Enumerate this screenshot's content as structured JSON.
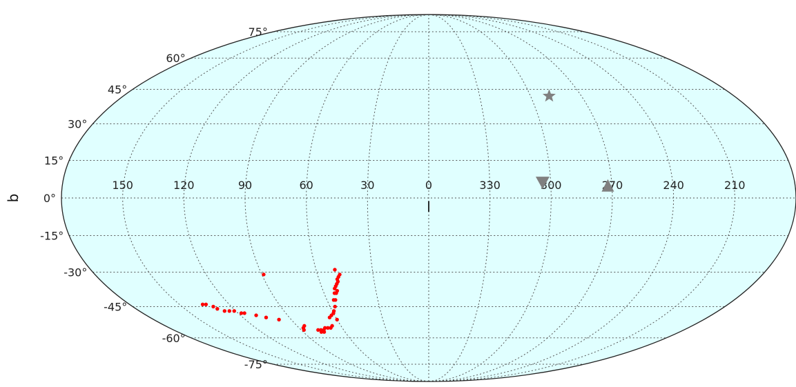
{
  "chart_data": {
    "type": "scatter",
    "projection": "mollweide",
    "grid": true,
    "background_color": "#e0ffff",
    "xlabel": "l",
    "ylabel": "b",
    "x_ticks": [
      "150",
      "120",
      "90",
      "60",
      "30",
      "0",
      "330",
      "300",
      "270",
      "240",
      "210"
    ],
    "y_ticks": [
      "75°",
      "60°",
      "45°",
      "30°",
      "15°",
      "0°",
      "-15°",
      "-30°",
      "-45°",
      "-60°",
      "-75°"
    ],
    "series": [
      {
        "marker": "circle",
        "color": "#ff0000",
        "points": [
          {
            "l": 50,
            "b": -29
          },
          {
            "l": 48,
            "b": -31
          },
          {
            "l": 49,
            "b": -32
          },
          {
            "l": 50,
            "b": -33
          },
          {
            "l": 50,
            "b": -34
          },
          {
            "l": 51,
            "b": -35
          },
          {
            "l": 52,
            "b": -36
          },
          {
            "l": 53,
            "b": -37
          },
          {
            "l": 52,
            "b": -38
          },
          {
            "l": 54,
            "b": -39
          },
          {
            "l": 53,
            "b": -39
          },
          {
            "l": 55,
            "b": -42
          },
          {
            "l": 56,
            "b": -42
          },
          {
            "l": 57,
            "b": -45
          },
          {
            "l": 59,
            "b": -47
          },
          {
            "l": 60,
            "b": -48
          },
          {
            "l": 62,
            "b": -49
          },
          {
            "l": 64,
            "b": -50
          },
          {
            "l": 60,
            "b": -51
          },
          {
            "l": 66,
            "b": -54
          },
          {
            "l": 68,
            "b": -55
          },
          {
            "l": 70,
            "b": -55
          },
          {
            "l": 72,
            "b": -55
          },
          {
            "l": 74,
            "b": -56
          },
          {
            "l": 76,
            "b": -56
          },
          {
            "l": 78,
            "b": -56
          },
          {
            "l": 77,
            "b": -57
          },
          {
            "l": 75,
            "b": -57
          },
          {
            "l": 85,
            "b": -54
          },
          {
            "l": 87,
            "b": -55
          },
          {
            "l": 88,
            "b": -56
          },
          {
            "l": 98,
            "b": -51
          },
          {
            "l": 105,
            "b": -50
          },
          {
            "l": 110,
            "b": -49
          },
          {
            "l": 116,
            "b": -48
          },
          {
            "l": 118,
            "b": -48
          },
          {
            "l": 121,
            "b": -47
          },
          {
            "l": 124,
            "b": -47
          },
          {
            "l": 127,
            "b": -47
          },
          {
            "l": 130,
            "b": -46
          },
          {
            "l": 131,
            "b": -45
          },
          {
            "l": 134,
            "b": -44
          },
          {
            "l": 136,
            "b": -44
          },
          {
            "l": 89,
            "b": -31
          }
        ]
      },
      {
        "marker": "star",
        "color": "#808080",
        "points": [
          {
            "l": 289,
            "b": 42
          }
        ]
      },
      {
        "marker": "triangle-down",
        "color": "#808080",
        "points": [
          {
            "l": 304,
            "b": 6
          }
        ]
      },
      {
        "marker": "triangle-up",
        "color": "#808080",
        "points": [
          {
            "l": 272,
            "b": 5
          }
        ]
      }
    ]
  }
}
